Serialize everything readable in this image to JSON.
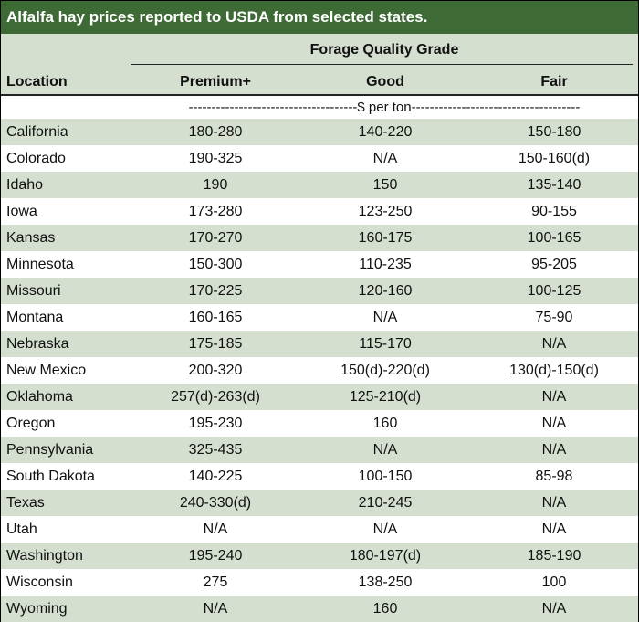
{
  "title": "Alfalfa hay prices reported to USDA from selected states.",
  "header": {
    "group_label": "Forage Quality Grade",
    "location_label": "Location",
    "columns": [
      "Premium+",
      "Good",
      "Fair"
    ]
  },
  "unit_line": "-------------------------------------$ per ton-------------------------------------",
  "rows": [
    {
      "location": "California",
      "premium": "180-280",
      "good": "140-220",
      "fair": "150-180"
    },
    {
      "location": "Colorado",
      "premium": "190-325",
      "good": "N/A",
      "fair": "150-160(d)"
    },
    {
      "location": "Idaho",
      "premium": "190",
      "good": "150",
      "fair": "135-140"
    },
    {
      "location": "Iowa",
      "premium": "173-280",
      "good": "123-250",
      "fair": "90-155"
    },
    {
      "location": "Kansas",
      "premium": "170-270",
      "good": "160-175",
      "fair": "100-165"
    },
    {
      "location": "Minnesota",
      "premium": "150-300",
      "good": "110-235",
      "fair": "95-205"
    },
    {
      "location": "Missouri",
      "premium": "170-225",
      "good": "120-160",
      "fair": "100-125"
    },
    {
      "location": "Montana",
      "premium": "160-165",
      "good": "N/A",
      "fair": "75-90"
    },
    {
      "location": "Nebraska",
      "premium": "175-185",
      "good": "115-170",
      "fair": "N/A"
    },
    {
      "location": "New Mexico",
      "premium": "200-320",
      "good": "150(d)-220(d)",
      "fair": "130(d)-150(d)"
    },
    {
      "location": "Oklahoma",
      "premium": "257(d)-263(d)",
      "good": "125-210(d)",
      "fair": "N/A"
    },
    {
      "location": "Oregon",
      "premium": "195-230",
      "good": "160",
      "fair": "N/A"
    },
    {
      "location": "Pennsylvania",
      "premium": "325-435",
      "good": "N/A",
      "fair": "N/A"
    },
    {
      "location": "South Dakota",
      "premium": "140-225",
      "good": "100-150",
      "fair": "85-98"
    },
    {
      "location": "Texas",
      "premium": "240-330(d)",
      "good": "210-245",
      "fair": "N/A"
    },
    {
      "location": "Utah",
      "premium": "N/A",
      "good": "N/A",
      "fair": "N/A"
    },
    {
      "location": "Washington",
      "premium": "195-240",
      "good": "180-197(d)",
      "fair": "185-190"
    },
    {
      "location": "Wisconsin",
      "premium": "275",
      "good": "138-250",
      "fair": "100"
    },
    {
      "location": "Wyoming",
      "premium": "N/A",
      "good": "160",
      "fair": "N/A"
    }
  ],
  "colors": {
    "title_bg": "#3e6a36",
    "band": "#d4dfd0"
  }
}
